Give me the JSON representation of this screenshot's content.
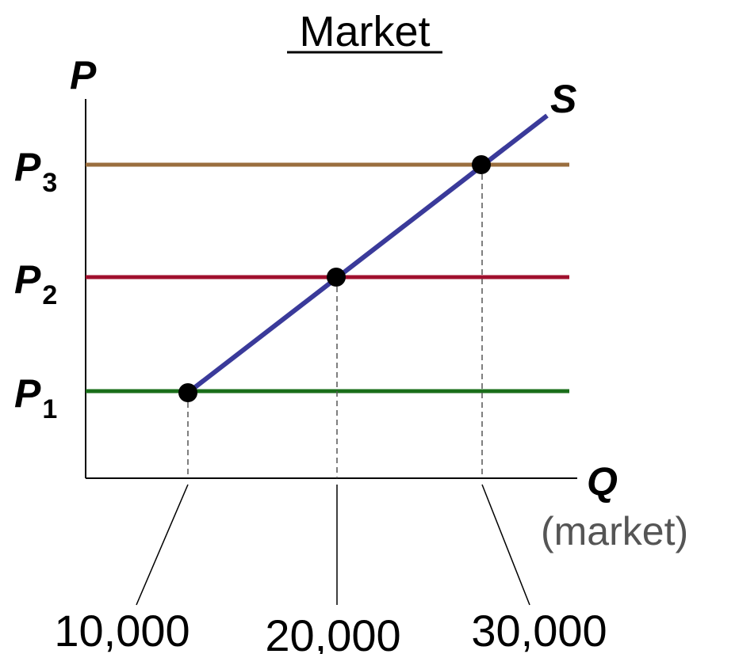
{
  "title": "Market",
  "axes": {
    "y_label": "P",
    "x_label": "Q",
    "x_unit": "(market)"
  },
  "supply": {
    "label": "S",
    "color": "#3a3a9a"
  },
  "price_levels": [
    {
      "main": "P",
      "sub": "3",
      "color": "#9a6e3e"
    },
    {
      "main": "P",
      "sub": "2",
      "color": "#a0102e"
    },
    {
      "main": "P",
      "sub": "1",
      "color": "#1a6e1a"
    }
  ],
  "quantities": [
    {
      "label": "10,000"
    },
    {
      "label": "20,000"
    },
    {
      "label": "30,000"
    }
  ]
}
